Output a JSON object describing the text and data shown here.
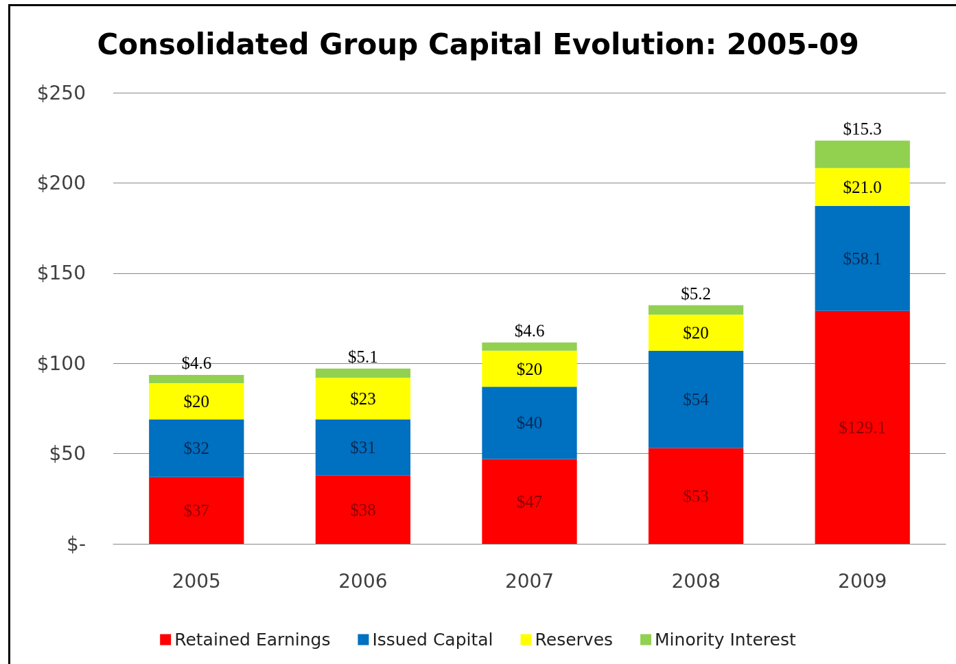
{
  "chart_data": {
    "type": "bar",
    "title": "Consolidated Group Capital Evolution: 2005-09",
    "stacked": true,
    "categories": [
      "2005",
      "2006",
      "2007",
      "2008",
      "2009"
    ],
    "series": [
      {
        "name": "Retained Earnings",
        "color": "#ff0000",
        "values": [
          37,
          38,
          47,
          53,
          129.1
        ],
        "value_labels": [
          "$37",
          "$38",
          "$47",
          "$53",
          "$129.1"
        ]
      },
      {
        "name": "Issued Capital",
        "color": "#0070c0",
        "values": [
          32,
          31,
          40,
          54,
          58.1
        ],
        "value_labels": [
          "$32",
          "$31",
          "$40",
          "$54",
          "$58.1"
        ]
      },
      {
        "name": "Reserves",
        "color": "#ffff00",
        "values": [
          20,
          23,
          20,
          20,
          21.0
        ],
        "value_labels": [
          "$20",
          "$23",
          "$20",
          "$20",
          "$21.0"
        ]
      },
      {
        "name": "Minority Interest",
        "color": "#92d050",
        "values": [
          4.6,
          5.1,
          4.6,
          5.2,
          15.3
        ],
        "value_labels": [
          "$4.6",
          "$5.1",
          "$4.6",
          "$5.2",
          "$15.3"
        ]
      }
    ],
    "ylim": [
      0,
      250
    ],
    "yticks": [
      {
        "value": 0,
        "label": "$-"
      },
      {
        "value": 50,
        "label": "$50"
      },
      {
        "value": 100,
        "label": "$100"
      },
      {
        "value": 150,
        "label": "$150"
      },
      {
        "value": 200,
        "label": "$200"
      },
      {
        "value": 250,
        "label": "$250"
      }
    ],
    "grid": "y",
    "legend": "bottom"
  }
}
